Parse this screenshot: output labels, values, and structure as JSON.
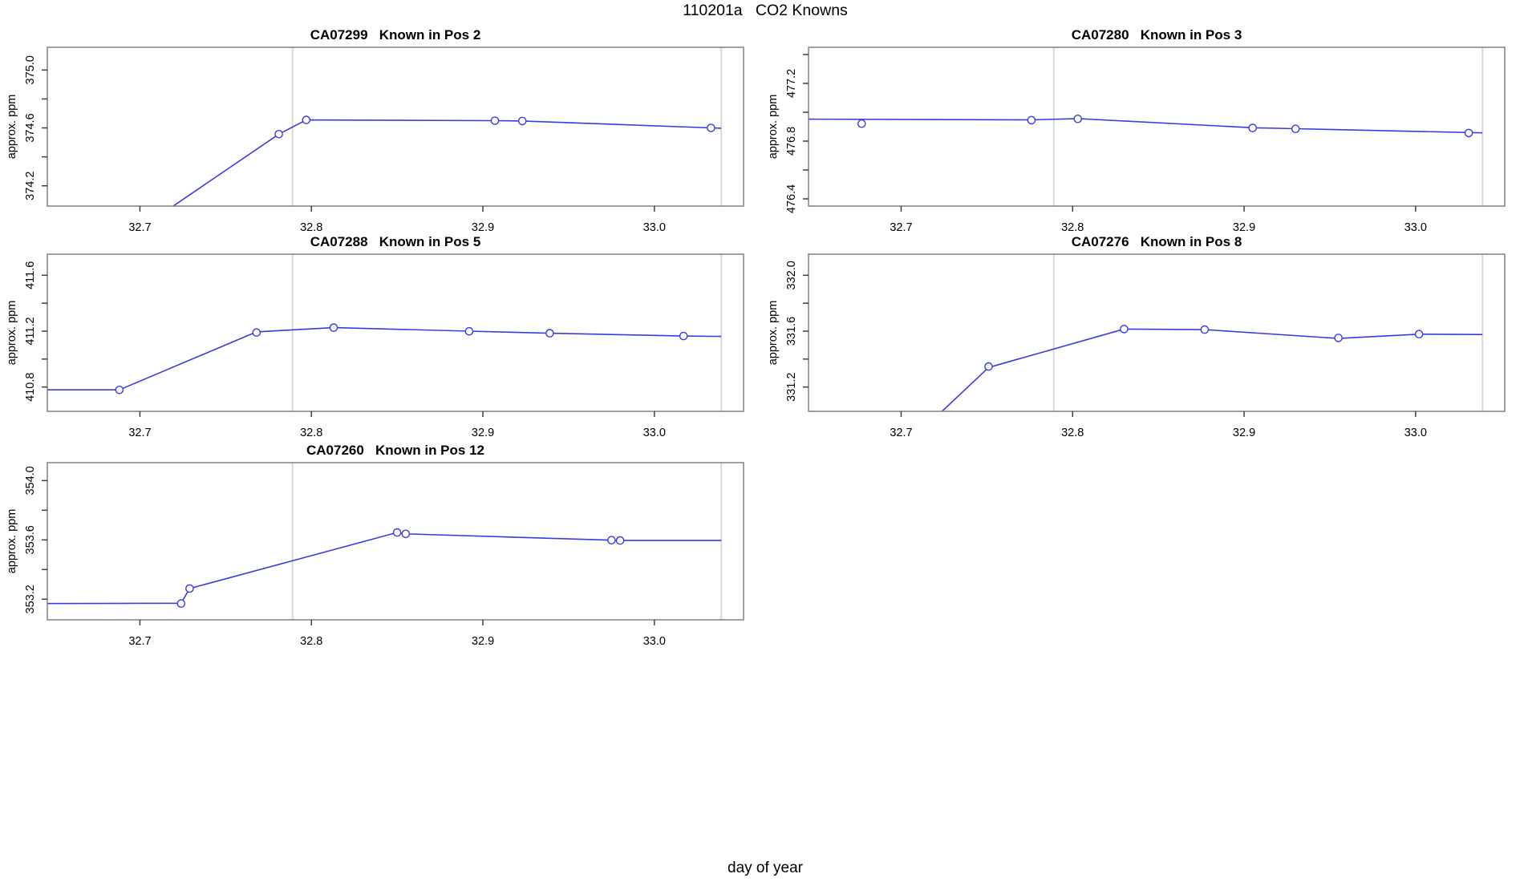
{
  "title": "110201a   CO2 Knowns",
  "xlabel": "day of year",
  "ylabel": "approx. ppm",
  "colors": {
    "line": "#3a3ce0",
    "marker_fill": "#ffffff",
    "gridline": "#d9d9d9",
    "border": "#808080",
    "tick": "#404040",
    "text": "#000000"
  },
  "chart_data": {
    "type": "line",
    "xlabel": "day of year",
    "ylabel": "approx. ppm",
    "xlim": [
      32.646,
      33.052
    ],
    "xticks": [
      32.7,
      32.8,
      32.9,
      33.0
    ],
    "xtick_labels": [
      "32.7",
      "32.8",
      "32.9",
      "33.0"
    ],
    "vlines": [
      32.789,
      33.039
    ],
    "grid": "vertical-marker-lines-only",
    "legend": "none",
    "panels": [
      {
        "title_id": "CA07299",
        "title_pos": "Known in Pos 2",
        "row": 0,
        "col": 0,
        "ylim": [
          374.06,
          375.157
        ],
        "yticks": [
          374.2,
          374.4,
          374.6,
          374.8,
          375.0
        ],
        "ytick_labels": [
          "374.2",
          "",
          "374.6",
          "",
          "375.0"
        ],
        "line": [
          [
            32.65,
            373.5
          ],
          [
            32.781,
            374.557
          ],
          [
            32.797,
            374.655
          ],
          [
            32.907,
            374.65
          ],
          [
            32.923,
            374.648
          ],
          [
            33.033,
            374.6
          ],
          [
            33.039,
            374.598
          ]
        ],
        "markers": [
          [
            32.781,
            374.557
          ],
          [
            32.797,
            374.655
          ],
          [
            32.907,
            374.65
          ],
          [
            32.923,
            374.648
          ],
          [
            33.033,
            374.6
          ]
        ]
      },
      {
        "title_id": "CA07280",
        "title_pos": "Known in Pos 3",
        "row": 0,
        "col": 1,
        "ylim": [
          476.35,
          477.45
        ],
        "yticks": [
          476.4,
          476.6,
          476.8,
          477.0,
          477.2,
          477.4
        ],
        "ytick_labels": [
          "476.4",
          "",
          "476.8",
          "",
          "477.2",
          ""
        ],
        "line": [
          [
            32.646,
            476.952
          ],
          [
            32.776,
            476.947
          ],
          [
            32.803,
            476.956
          ],
          [
            32.905,
            476.893
          ],
          [
            32.93,
            476.886
          ],
          [
            33.039,
            476.857
          ]
        ],
        "markers": [
          [
            32.677,
            476.921
          ],
          [
            32.776,
            476.945
          ],
          [
            32.803,
            476.954
          ],
          [
            32.905,
            476.891
          ],
          [
            32.93,
            476.885
          ],
          [
            33.031,
            476.856
          ]
        ]
      },
      {
        "title_id": "CA07288",
        "title_pos": "Known in Pos 5",
        "row": 1,
        "col": 0,
        "ylim": [
          410.626,
          411.751
        ],
        "yticks": [
          410.8,
          411.0,
          411.2,
          411.4,
          411.6
        ],
        "ytick_labels": [
          "410.8",
          "",
          "411.2",
          "",
          "411.6"
        ],
        "line": [
          [
            32.646,
            410.78
          ],
          [
            32.688,
            410.78
          ],
          [
            32.768,
            411.195
          ],
          [
            32.813,
            411.225
          ],
          [
            32.892,
            411.2
          ],
          [
            32.939,
            411.185
          ],
          [
            33.017,
            411.165
          ],
          [
            33.039,
            411.162
          ]
        ],
        "markers": [
          [
            32.688,
            410.779
          ],
          [
            32.768,
            411.19
          ],
          [
            32.813,
            411.225
          ],
          [
            32.892,
            411.199
          ],
          [
            32.939,
            411.185
          ],
          [
            33.017,
            411.165
          ]
        ]
      },
      {
        "title_id": "CA07276",
        "title_pos": "Known in Pos 8",
        "row": 1,
        "col": 1,
        "ylim": [
          331.026,
          332.151
        ],
        "yticks": [
          331.2,
          331.4,
          331.6,
          331.8,
          332.0
        ],
        "ytick_labels": [
          "331.2",
          "",
          "331.6",
          "",
          "332.0"
        ],
        "line": [
          [
            32.7,
            330.75
          ],
          [
            32.751,
            331.34
          ],
          [
            32.83,
            331.615
          ],
          [
            32.877,
            331.611
          ],
          [
            32.955,
            331.548
          ],
          [
            33.002,
            331.578
          ],
          [
            33.039,
            331.576
          ]
        ],
        "markers": [
          [
            32.751,
            331.347
          ],
          [
            32.83,
            331.615
          ],
          [
            32.877,
            331.611
          ],
          [
            32.955,
            331.552
          ],
          [
            33.002,
            331.579
          ]
        ]
      },
      {
        "title_id": "CA07260",
        "title_pos": "Known in Pos 12",
        "row": 2,
        "col": 0,
        "ylim": [
          353.061,
          354.121
        ],
        "yticks": [
          353.2,
          353.4,
          353.6,
          353.8,
          354.0
        ],
        "ytick_labels": [
          "353.2",
          "",
          "353.6",
          "",
          "354.0"
        ],
        "line": [
          [
            32.646,
            353.171
          ],
          [
            32.724,
            353.173
          ],
          [
            32.729,
            353.272
          ],
          [
            32.85,
            353.65
          ],
          [
            32.855,
            353.641
          ],
          [
            32.975,
            353.598
          ],
          [
            32.98,
            353.596
          ],
          [
            33.039,
            353.596
          ]
        ],
        "markers": [
          [
            32.724,
            353.171
          ],
          [
            32.729,
            353.272
          ],
          [
            32.85,
            353.65
          ],
          [
            32.855,
            353.641
          ],
          [
            32.975,
            353.598
          ],
          [
            32.98,
            353.596
          ]
        ]
      }
    ]
  }
}
